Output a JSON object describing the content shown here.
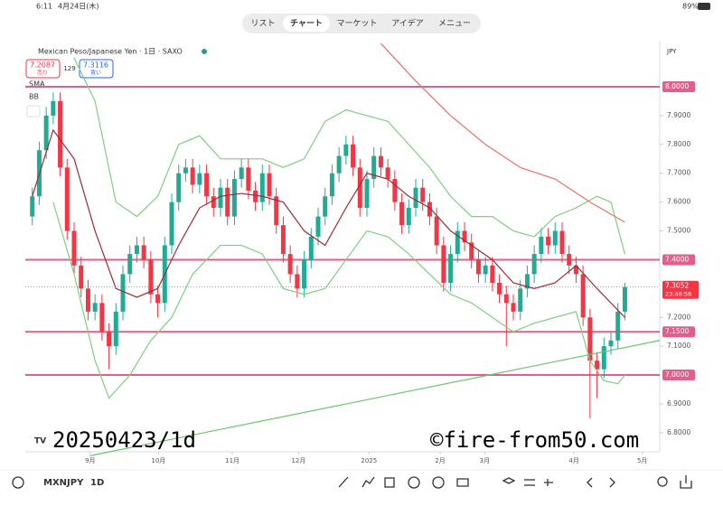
{
  "status": {
    "time": "6:11",
    "date": "4月24日(木)",
    "battery": "89%"
  },
  "tabs": [
    "リスト",
    "チャート",
    "マーケット",
    "アイデア",
    "メニュー"
  ],
  "header": {
    "symbol_title": "Mexican Peso/Japanese Yen · 1日 · SAXO",
    "sell_price": "7.2087",
    "sell_label": "売り",
    "spread": "129",
    "buy_price": "7.3116",
    "buy_label": "買い",
    "currency": "JPY"
  },
  "legend": [
    "SMA",
    "BB"
  ],
  "watermark": {
    "left": "20250423/1d",
    "right": "©fire-from50.com"
  },
  "toolbar": {
    "symbol": "MXNJPY",
    "interval": "1D"
  },
  "chart_data": {
    "type": "candlestick",
    "xlim": [
      -1,
      90
    ],
    "ylim": [
      6.74,
      8.16
    ],
    "xticks": [
      {
        "value": 8.3,
        "label": "9月"
      },
      {
        "value": 18.1,
        "label": "10月"
      },
      {
        "value": 28.7,
        "label": "11月"
      },
      {
        "value": 38.2,
        "label": "12月"
      },
      {
        "value": 48.3,
        "label": "2025"
      },
      {
        "value": 58.5,
        "label": "2月"
      },
      {
        "value": 64.9,
        "label": "3月"
      },
      {
        "value": 77.7,
        "label": "4月"
      },
      {
        "value": 87.5,
        "label": "5月"
      }
    ],
    "yticks": [
      {
        "value": 7.9,
        "label": "7.9000"
      },
      {
        "value": 7.8,
        "label": "7.8000"
      },
      {
        "value": 7.7,
        "label": "7.7000"
      },
      {
        "value": 7.6,
        "label": "7.6000"
      },
      {
        "value": 7.5,
        "label": "7.5000"
      },
      {
        "value": 7.2,
        "label": "7.2000"
      },
      {
        "value": 7.1,
        "label": "7.1000"
      },
      {
        "value": 6.9,
        "label": "6.9000"
      },
      {
        "value": 6.8,
        "label": "6.8000"
      }
    ],
    "levels": [
      {
        "value": 8.0,
        "label": "8.0000"
      },
      {
        "value": 7.4,
        "label": "7.4000"
      },
      {
        "value": 7.15,
        "label": "7.1500"
      },
      {
        "value": 7.0,
        "label": "7.0000"
      }
    ],
    "level_color": "#e0608a",
    "up_color": "#22ab94",
    "down_color": "#f23645",
    "countdown": "23:48:58",
    "open": [
      7.55,
      7.62,
      7.78,
      7.9,
      7.95,
      7.72,
      7.5,
      7.38,
      7.3,
      7.22,
      7.25,
      7.15,
      7.1,
      7.22,
      7.35,
      7.42,
      7.45,
      7.4,
      7.28,
      7.25,
      7.45,
      7.6,
      7.7,
      7.72,
      7.66,
      7.7,
      7.62,
      7.58,
      7.65,
      7.55,
      7.68,
      7.72,
      7.64,
      7.6,
      7.7,
      7.62,
      7.52,
      7.42,
      7.35,
      7.3,
      7.4,
      7.48,
      7.55,
      7.62,
      7.7,
      7.76,
      7.8,
      7.72,
      7.58,
      7.68,
      7.76,
      7.72,
      7.68,
      7.6,
      7.52,
      7.58,
      7.65,
      7.6,
      7.55,
      7.45,
      7.32,
      7.42,
      7.5,
      7.46,
      7.4,
      7.35,
      7.38,
      7.32,
      7.28,
      7.25,
      7.22,
      7.3,
      7.35,
      7.42,
      7.48,
      7.45,
      7.5,
      7.42,
      7.38,
      7.35,
      7.2,
      7.05,
      7.02,
      7.1,
      7.12,
      7.22
    ],
    "high": [
      7.65,
      7.81,
      7.93,
      7.98,
      7.98,
      7.75,
      7.53,
      7.41,
      7.33,
      7.28,
      7.28,
      7.18,
      7.25,
      7.38,
      7.45,
      7.48,
      7.48,
      7.43,
      7.31,
      7.48,
      7.63,
      7.73,
      7.75,
      7.75,
      7.73,
      7.73,
      7.65,
      7.68,
      7.68,
      7.71,
      7.75,
      7.75,
      7.67,
      7.73,
      7.73,
      7.65,
      7.55,
      7.45,
      7.38,
      7.43,
      7.51,
      7.58,
      7.65,
      7.73,
      7.79,
      7.83,
      7.83,
      7.75,
      7.71,
      7.79,
      7.79,
      7.75,
      7.71,
      7.63,
      7.61,
      7.68,
      7.68,
      7.63,
      7.58,
      7.48,
      7.45,
      7.53,
      7.53,
      7.49,
      7.43,
      7.41,
      7.41,
      7.35,
      7.31,
      7.28,
      7.33,
      7.38,
      7.45,
      7.51,
      7.51,
      7.53,
      7.53,
      7.45,
      7.41,
      7.38,
      7.23,
      7.08,
      7.13,
      7.15,
      7.25,
      7.32
    ],
    "low": [
      7.52,
      7.59,
      7.75,
      7.87,
      7.69,
      7.47,
      7.35,
      7.27,
      7.19,
      7.19,
      7.12,
      7.02,
      7.07,
      7.19,
      7.32,
      7.39,
      7.37,
      7.25,
      7.2,
      7.22,
      7.42,
      7.57,
      7.67,
      7.63,
      7.63,
      7.59,
      7.55,
      7.55,
      7.52,
      7.52,
      7.65,
      7.61,
      7.57,
      7.57,
      7.59,
      7.49,
      7.39,
      7.32,
      7.27,
      7.27,
      7.37,
      7.45,
      7.52,
      7.59,
      7.67,
      7.73,
      7.69,
      7.55,
      7.55,
      7.65,
      7.69,
      7.65,
      7.57,
      7.49,
      7.49,
      7.55,
      7.57,
      7.52,
      7.42,
      7.29,
      7.29,
      7.39,
      7.43,
      7.37,
      7.32,
      7.32,
      7.29,
      7.25,
      7.1,
      7.19,
      7.19,
      7.27,
      7.32,
      7.39,
      7.42,
      7.42,
      7.39,
      7.35,
      7.32,
      7.17,
      6.85,
      6.92,
      6.99,
      7.07,
      7.09,
      7.19
    ],
    "close": [
      7.62,
      7.78,
      7.9,
      7.95,
      7.72,
      7.5,
      7.38,
      7.3,
      7.22,
      7.25,
      7.15,
      7.1,
      7.22,
      7.35,
      7.42,
      7.45,
      7.4,
      7.28,
      7.25,
      7.45,
      7.6,
      7.7,
      7.72,
      7.66,
      7.7,
      7.62,
      7.58,
      7.65,
      7.55,
      7.68,
      7.72,
      7.64,
      7.6,
      7.7,
      7.62,
      7.52,
      7.42,
      7.35,
      7.3,
      7.4,
      7.48,
      7.55,
      7.62,
      7.7,
      7.76,
      7.8,
      7.72,
      7.58,
      7.68,
      7.76,
      7.72,
      7.68,
      7.6,
      7.52,
      7.58,
      7.65,
      7.6,
      7.55,
      7.45,
      7.32,
      7.42,
      7.5,
      7.46,
      7.4,
      7.35,
      7.38,
      7.32,
      7.28,
      7.25,
      7.22,
      7.3,
      7.35,
      7.42,
      7.48,
      7.45,
      7.5,
      7.42,
      7.38,
      7.35,
      7.2,
      7.05,
      7.02,
      7.1,
      7.12,
      7.22,
      7.3052
    ],
    "indicators": [
      {
        "color": "#9b2d35",
        "x": [
          0,
          3,
          6,
          9,
          12,
          15,
          18,
          21,
          24,
          27,
          30,
          33,
          36,
          39,
          42,
          45,
          48,
          51,
          54,
          57,
          60,
          63,
          66,
          69,
          72,
          75,
          78,
          81,
          85
        ],
        "values": [
          7.62,
          7.85,
          7.75,
          7.5,
          7.3,
          7.27,
          7.3,
          7.45,
          7.58,
          7.62,
          7.63,
          7.62,
          7.6,
          7.5,
          7.45,
          7.58,
          7.7,
          7.68,
          7.62,
          7.58,
          7.5,
          7.45,
          7.4,
          7.32,
          7.3,
          7.32,
          7.38,
          7.3,
          7.2
        ]
      },
      {
        "color": "#7fcf7f",
        "x": [
          6,
          9,
          12,
          15,
          18,
          21,
          24,
          27,
          30,
          33,
          36,
          39,
          42,
          45,
          48,
          51,
          54,
          57,
          60,
          63,
          66,
          69,
          72,
          75,
          78,
          81,
          83,
          85
        ],
        "values": [
          8.1,
          7.95,
          7.6,
          7.55,
          7.62,
          7.8,
          7.83,
          7.75,
          7.75,
          7.75,
          7.72,
          7.75,
          7.88,
          7.92,
          7.9,
          7.88,
          7.8,
          7.72,
          7.62,
          7.55,
          7.55,
          7.5,
          7.48,
          7.55,
          7.58,
          7.62,
          7.6,
          7.42
        ]
      },
      {
        "color": "#7fcf7f",
        "x": [
          3,
          6,
          9,
          11,
          14,
          17,
          20,
          23,
          27,
          30,
          33,
          36,
          39,
          42,
          45,
          48,
          51,
          54,
          57,
          60,
          63,
          66,
          69,
          72,
          75,
          78,
          80,
          82,
          84,
          85
        ],
        "values": [
          7.6,
          7.35,
          7.05,
          6.92,
          7.0,
          7.12,
          7.2,
          7.35,
          7.45,
          7.45,
          7.42,
          7.3,
          7.28,
          7.3,
          7.4,
          7.5,
          7.48,
          7.42,
          7.35,
          7.28,
          7.25,
          7.2,
          7.15,
          7.18,
          7.2,
          7.22,
          7.05,
          6.98,
          6.97,
          7.0
        ]
      },
      {
        "color": "#f07060",
        "x": [
          50,
          55,
          60,
          65,
          70,
          75,
          80,
          85
        ],
        "values": [
          8.15,
          8.02,
          7.9,
          7.8,
          7.72,
          7.68,
          7.6,
          7.53
        ]
      }
    ],
    "trendline": {
      "color": "#6cc56c",
      "x": [
        8.3,
        90
      ],
      "values": [
        6.72,
        7.12
      ]
    }
  }
}
